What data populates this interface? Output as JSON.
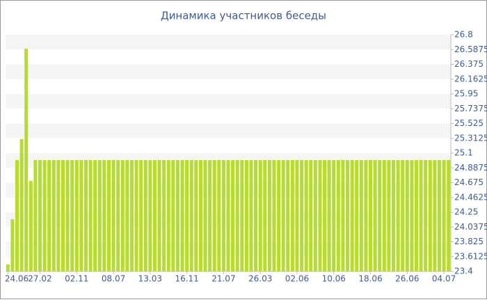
{
  "chart_data": {
    "type": "bar",
    "title": "Динамика участников беседы",
    "categories": [
      "24.06",
      null,
      null,
      null,
      null,
      null,
      null,
      "27.02",
      null,
      null,
      null,
      null,
      null,
      null,
      null,
      "02.11",
      null,
      null,
      null,
      null,
      null,
      null,
      null,
      "08.07",
      null,
      null,
      null,
      null,
      null,
      null,
      null,
      "13.03",
      null,
      null,
      null,
      null,
      null,
      null,
      null,
      "16.11",
      null,
      null,
      null,
      null,
      null,
      null,
      null,
      "21.07",
      null,
      null,
      null,
      null,
      null,
      null,
      null,
      "26.03",
      null,
      null,
      null,
      null,
      null,
      null,
      null,
      "02.06",
      null,
      null,
      null,
      null,
      null,
      null,
      null,
      "10.06",
      null,
      null,
      null,
      null,
      null,
      null,
      null,
      "18.06",
      null,
      null,
      null,
      null,
      null,
      null,
      null,
      "26.06",
      null,
      null,
      null,
      null,
      null,
      null,
      null,
      "04.07",
      null
    ],
    "values": [
      23.5,
      24.15,
      25.0,
      25.3,
      26.6,
      24.7,
      25.0,
      25,
      25,
      25,
      25,
      25,
      25,
      25,
      25,
      25,
      25,
      25,
      25,
      25,
      25,
      25,
      25,
      25,
      25,
      25,
      25,
      25,
      25,
      25,
      25,
      25,
      25,
      25,
      25,
      25,
      25,
      25,
      25,
      25,
      25,
      25,
      25,
      25,
      25,
      25,
      25,
      25,
      25,
      25,
      25,
      25,
      25,
      25,
      25,
      25,
      25,
      25,
      25,
      25,
      25,
      25,
      25,
      25,
      25,
      25,
      25,
      25,
      25,
      25,
      25,
      25,
      25,
      25,
      25,
      25,
      25,
      25,
      25,
      25,
      25,
      25,
      25,
      25,
      25,
      25,
      25,
      25,
      25,
      25,
      25,
      25,
      25,
      25,
      25,
      25,
      25
    ],
    "color": "#b8dc2c",
    "ylim": [
      23.4,
      26.8
    ],
    "yticks": [
      23.4,
      23.6125,
      23.825,
      24.0375,
      24.25,
      24.4625,
      24.675,
      24.8875,
      25.1,
      25.3125,
      25.525,
      25.7375,
      25.95,
      26.1625,
      26.375,
      26.5875,
      26.8
    ],
    "grid": true
  }
}
